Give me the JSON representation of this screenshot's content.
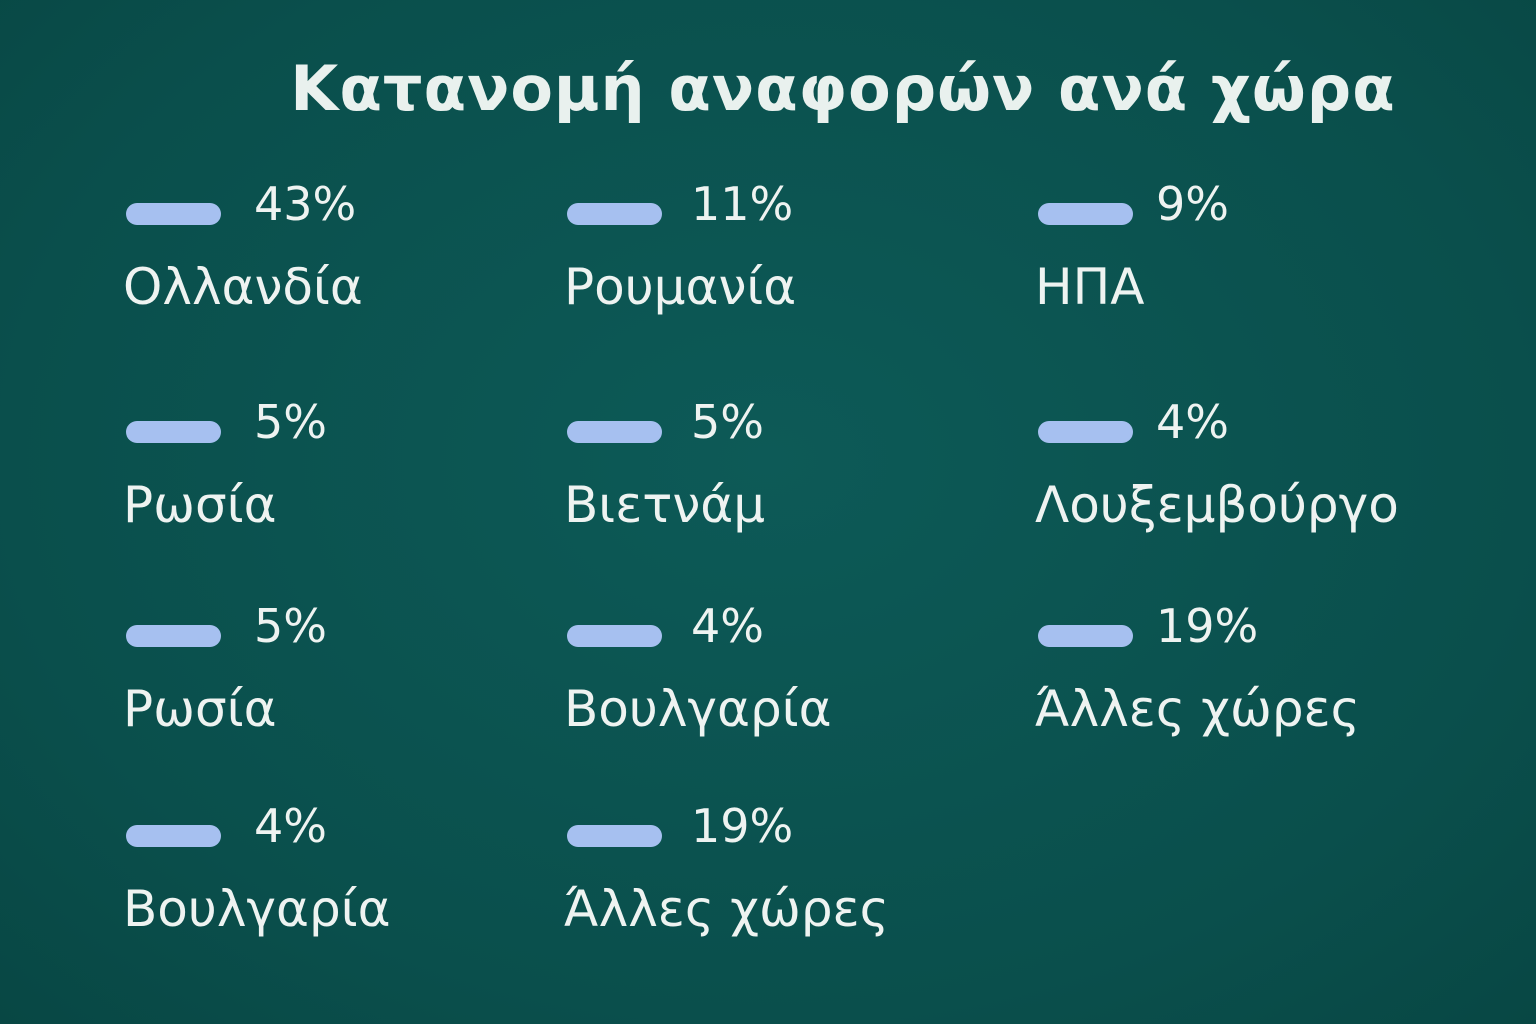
{
  "title": "Κατανομή αναφορών ανά χώρα",
  "items": [
    {
      "percent": "43%",
      "label": "Ολλανδία"
    },
    {
      "percent": "11%",
      "label": "Ρουμανία"
    },
    {
      "percent": "9%",
      "label": "ΗΠΑ"
    },
    {
      "percent": "5%",
      "label": "Ρωσία"
    },
    {
      "percent": "5%",
      "label": "Βιετνάμ"
    },
    {
      "percent": "4%",
      "label": "Λουξεμβούργο"
    },
    {
      "percent": "5%",
      "label": "Ρωσία"
    },
    {
      "percent": "4%",
      "label": "Βουλγαρία"
    },
    {
      "percent": "19%",
      "label": "Άλλες χώρες"
    },
    {
      "percent": "4%",
      "label": "Βουλγαρία"
    },
    {
      "percent": "19%",
      "label": "Άλλες χώρες"
    }
  ]
}
